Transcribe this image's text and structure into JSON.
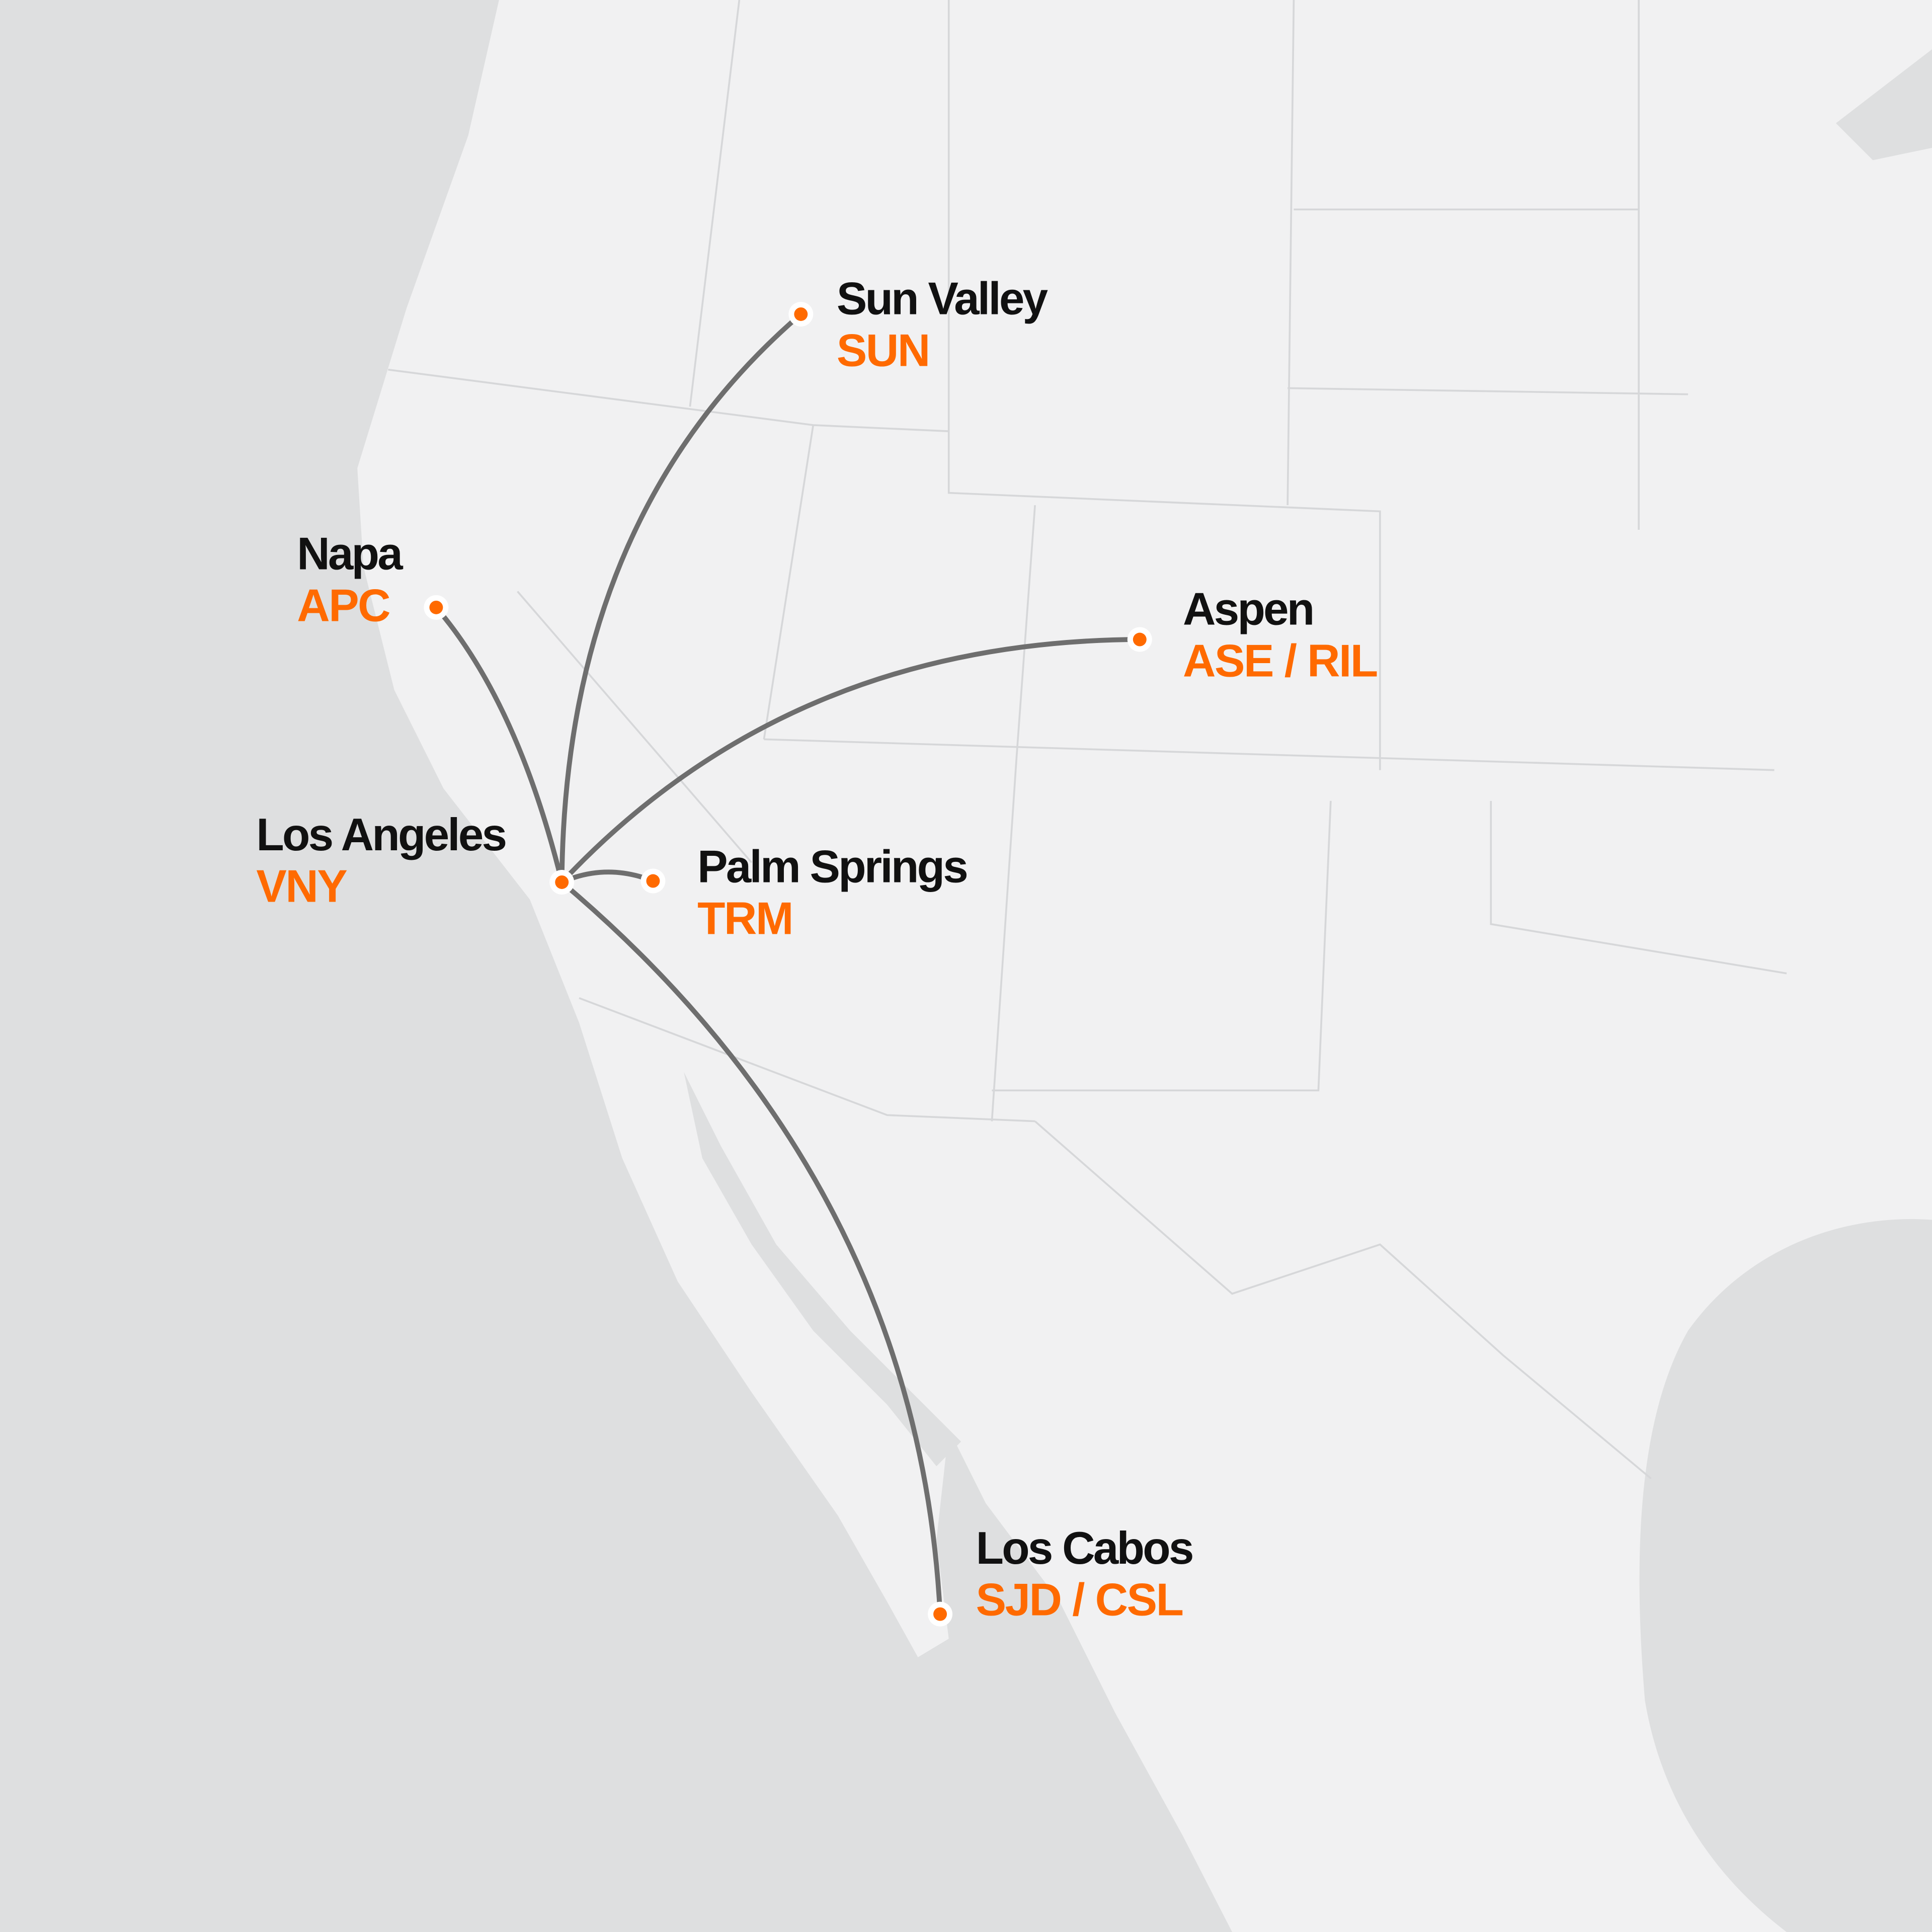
{
  "colors": {
    "water": "#dedfe0",
    "land": "#f1f1f2",
    "border": "#d6d7d9",
    "route": "#6e6e6e",
    "accent": "#ff6a00",
    "label": "#111111"
  },
  "hub": {
    "name": "Los Angeles",
    "code": "VNY"
  },
  "destinations": [
    {
      "name": "Sun Valley",
      "code": "SUN"
    },
    {
      "name": "Napa",
      "code": "APC"
    },
    {
      "name": "Aspen",
      "code": "ASE / RIL"
    },
    {
      "name": "Palm Springs",
      "code": "TRM"
    },
    {
      "name": "Los Cabos",
      "code": "SJD / CSL"
    }
  ]
}
